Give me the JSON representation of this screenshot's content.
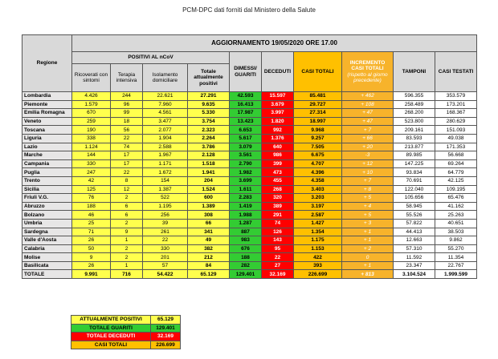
{
  "header": {
    "title": "PCM-DPC dati forniti dal Ministero della Salute"
  },
  "table": {
    "update": "AGGIORNAMENTO 19/05/2020 ORE 17.00",
    "region_header": "Regione",
    "group_header": "POSITIVI AL nCoV",
    "columns": [
      "Ricoverati con sintomi",
      "Terapia intensiva",
      "Isolamento domiciliare",
      "Totale attualmente positivi",
      "DIMESSI/ GUARITI",
      "DECEDUTI",
      "CASI TOTALI",
      "INCREMENTO CASI TOTALI",
      "TAMPONI",
      "CASI TESTATI"
    ],
    "increment_note": "(rispetto al giorno precedente)",
    "rows": [
      [
        "Lombardia",
        "4.426",
        "244",
        "22.621",
        "27.291",
        "42.593",
        "15.597",
        "85.481",
        "+ 462",
        "596.355",
        "353.579"
      ],
      [
        "Piemonte",
        "1.579",
        "96",
        "7.960",
        "9.635",
        "16.413",
        "3.679",
        "29.727",
        "+ 108",
        "258.489",
        "173.201"
      ],
      [
        "Emilia Romagna",
        "670",
        "99",
        "4.561",
        "5.330",
        "17.987",
        "3.997",
        "27.314",
        "+ 47",
        "268.200",
        "168.367"
      ],
      [
        "Veneto",
        "259",
        "18",
        "3.477",
        "3.754",
        "13.423",
        "1.820",
        "18.997",
        "+ 47",
        "523.800",
        "280.629"
      ],
      [
        "Toscana",
        "190",
        "56",
        "2.077",
        "2.323",
        "6.653",
        "992",
        "9.968",
        "+ 7",
        "209.161",
        "151.093"
      ],
      [
        "Liguria",
        "338",
        "22",
        "1.904",
        "2.264",
        "5.617",
        "1.376",
        "9.257",
        "+ 66",
        "83.593",
        "49.038"
      ],
      [
        "Lazio",
        "1.124",
        "74",
        "2.588",
        "3.786",
        "3.079",
        "640",
        "7.505",
        "+ 20",
        "213.877",
        "171.353"
      ],
      [
        "Marche",
        "144",
        "17",
        "1.967",
        "2.128",
        "3.561",
        "986",
        "6.675",
        "-3",
        "89.985",
        "56.668"
      ],
      [
        "Campania",
        "330",
        "17",
        "1.171",
        "1.518",
        "2.790",
        "399",
        "4.707",
        "+ 12",
        "147.225",
        "69.264"
      ],
      [
        "Puglia",
        "247",
        "22",
        "1.672",
        "1.941",
        "1.982",
        "473",
        "4.396",
        "+ 10",
        "93.834",
        "64.779"
      ],
      [
        "Trento",
        "42",
        "8",
        "154",
        "204",
        "3.699",
        "455",
        "4.358",
        "+ 7",
        "70.691",
        "42.125"
      ],
      [
        "Sicilia",
        "125",
        "12",
        "1.387",
        "1.524",
        "1.611",
        "268",
        "3.403",
        "+ 8",
        "122.040",
        "109.195"
      ],
      [
        "Friuli V.G.",
        "76",
        "2",
        "522",
        "600",
        "2.283",
        "320",
        "3.203",
        "+ 5",
        "105.656",
        "65.476"
      ],
      [
        "Abruzzo",
        "188",
        "6",
        "1.195",
        "1.389",
        "1.419",
        "389",
        "3.197",
        "+ 4",
        "58.945",
        "41.162"
      ],
      [
        "Bolzano",
        "46",
        "6",
        "256",
        "308",
        "1.988",
        "291",
        "2.587",
        "+ 5",
        "55.526",
        "25.263"
      ],
      [
        "Umbria",
        "25",
        "2",
        "39",
        "66",
        "1.287",
        "74",
        "1.427",
        "+ 3",
        "57.822",
        "40.651"
      ],
      [
        "Sardegna",
        "71",
        "9",
        "261",
        "341",
        "887",
        "126",
        "1.354",
        "+ 1",
        "44.413",
        "38.503"
      ],
      [
        "Valle d'Aosta",
        "26",
        "1",
        "22",
        "49",
        "983",
        "143",
        "1.175",
        "+ 1",
        "12.663",
        "9.862"
      ],
      [
        "Calabria",
        "50",
        "2",
        "330",
        "382",
        "676",
        "95",
        "1.153",
        "+ 2",
        "57.310",
        "55.270"
      ],
      [
        "Molise",
        "9",
        "2",
        "201",
        "212",
        "188",
        "22",
        "422",
        "0",
        "11.592",
        "11.354"
      ],
      [
        "Basilicata",
        "26",
        "1",
        "57",
        "84",
        "282",
        "27",
        "393",
        "+ 1",
        "23.347",
        "22.767"
      ],
      [
        "TOTALE",
        "9.991",
        "716",
        "54.422",
        "65.129",
        "129.401",
        "32.169",
        "226.699",
        "+ 813",
        "3.104.524",
        "1.999.599"
      ]
    ]
  },
  "summary": {
    "rows": [
      [
        "ATTUALMENTE POSITIVI",
        "65.129"
      ],
      [
        "TOTALE GUARITI",
        "129.401"
      ],
      [
        "TOTALE DECEDUTI",
        "32.169"
      ],
      [
        "CASI TOTALI",
        "226.699"
      ]
    ]
  }
}
